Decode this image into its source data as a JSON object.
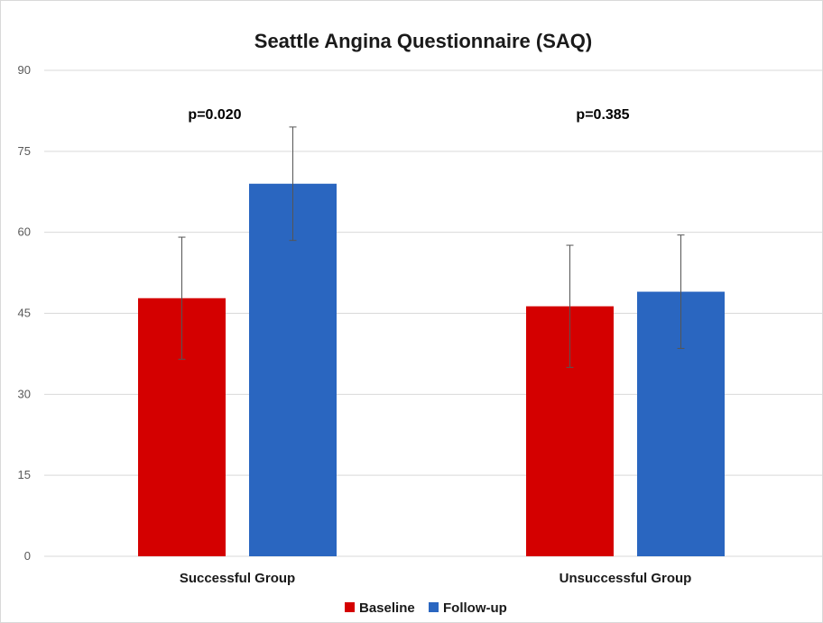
{
  "chart_data": {
    "type": "bar",
    "title": "Seattle Angina Questionnaire (SAQ)",
    "xlabel": "",
    "ylabel": "",
    "ylim": [
      0,
      90
    ],
    "yticks": [
      0,
      15,
      30,
      45,
      60,
      75,
      90
    ],
    "grid": true,
    "legend_position": "bottom",
    "categories": [
      "Successful Group",
      "Unsuccessful Group"
    ],
    "series": [
      {
        "name": "Baseline",
        "color": "#d40000",
        "values": [
          47.8,
          46.3
        ],
        "error": [
          11.3,
          11.3
        ]
      },
      {
        "name": "Follow-up",
        "color": "#2a66c0",
        "values": [
          69.0,
          49.0
        ],
        "error": [
          10.5,
          10.5
        ]
      }
    ],
    "annotations": [
      "p=0.020",
      "p=0.385"
    ]
  }
}
